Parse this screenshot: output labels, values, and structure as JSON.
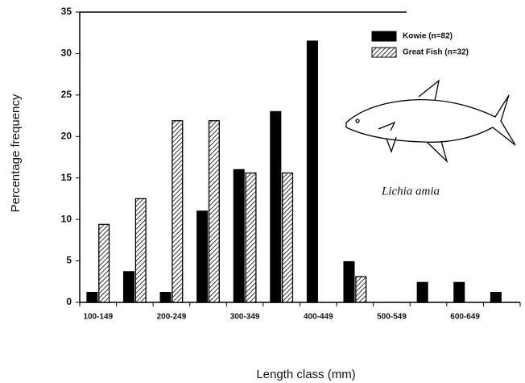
{
  "chart_data": {
    "type": "bar",
    "y_label": "Percentage frequency",
    "x_label": "Length class (mm)",
    "annotation": "Lichia amia",
    "categories": [
      "100-149",
      null,
      "200-249",
      null,
      "300-349",
      null,
      "400-449",
      null,
      "500-549",
      null,
      "600-649",
      null
    ],
    "series": [
      {
        "name": "Kowie (n=82)",
        "color": "#000000",
        "hatch": false,
        "values": [
          1.2,
          3.7,
          1.2,
          11,
          16,
          23,
          31.5,
          4.9,
          0,
          2.4,
          2.4,
          1.2
        ]
      },
      {
        "name": "Great Fish (n=32)",
        "color": "#000000",
        "hatch": true,
        "values": [
          9.4,
          12.5,
          21.9,
          21.9,
          15.6,
          15.6,
          0,
          3.1,
          0,
          0,
          0,
          0
        ]
      }
    ],
    "ylim": [
      0,
      35
    ],
    "yticks": [
      0,
      5,
      10,
      15,
      20,
      25,
      30,
      35
    ],
    "grid": false
  }
}
